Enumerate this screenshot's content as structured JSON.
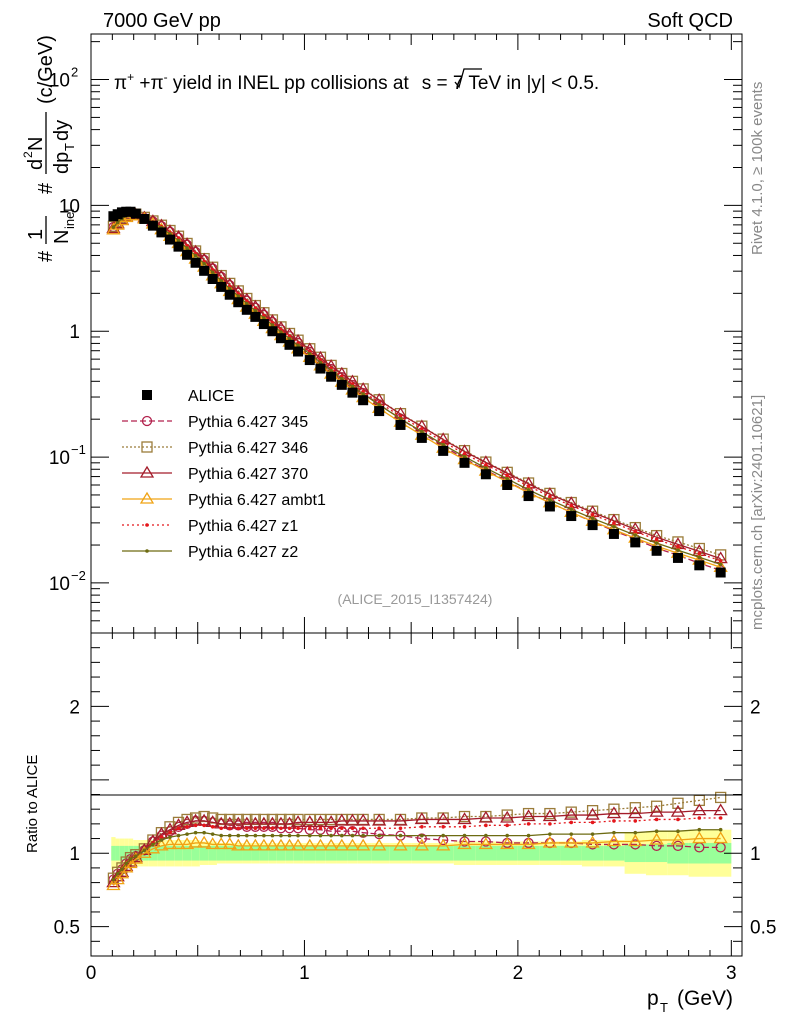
{
  "header": {
    "energy_label": "7000 GeV pp",
    "category_label": "Soft QCD"
  },
  "side": {
    "rivet_label": "Rivet 4.1.0, ≥ 100k events",
    "site_label": "mcplots.cern.ch [arXiv:2401.10621]"
  },
  "chart_data": {
    "type": "line",
    "title_parts": {
      "pi_plus": "π",
      "sup_plus": "+",
      "plus": " +",
      "pi_minus": "π",
      "sup_minus": "-",
      "middle": " yield in INEL pp collisions at",
      "sqrt_s": "s",
      "tail": " =  7 TeV in |y| < 0.5."
    },
    "analysis_id": "(ALICE_2015_I1357424)",
    "ylabel_main": "1/N_inel d²N/dp_T dy (c/GeV)",
    "ylabel_parts": {
      "hash1": "#",
      "one": "1",
      "n": "N",
      "inel": "inel",
      "hash2": "#",
      "d2n": "d",
      "two": "2",
      "n2": "N",
      "dp": "dp",
      "t": "T",
      "dy": "dy",
      "unit": "(c/GeV)"
    },
    "ylabel_ratio": "Ratio to ALICE",
    "xlabel_parts": {
      "p": "p",
      "t": "T",
      "unit": "(GeV)"
    },
    "xlim": [
      0,
      3.05
    ],
    "ylim_main": [
      0.004,
      230
    ],
    "ylim_ratio": [
      0.3,
      2.5
    ],
    "xticks": [
      {
        "value": 0,
        "label": "0"
      },
      {
        "value": 1,
        "label": "1"
      },
      {
        "value": 2,
        "label": "2"
      },
      {
        "value": 3,
        "label": "3"
      }
    ],
    "yticks_main": [
      {
        "value": 0.01,
        "base": "10",
        "exp": "−2"
      },
      {
        "value": 0.1,
        "base": "10",
        "exp": "−1"
      },
      {
        "value": 1,
        "base": "1",
        "exp": ""
      },
      {
        "value": 10,
        "base": "10",
        "exp": ""
      },
      {
        "value": 100,
        "base": "10",
        "exp": "2"
      }
    ],
    "yticks_ratio": [
      {
        "value": 0.5,
        "label": "0.5"
      },
      {
        "value": 1,
        "label": "1"
      },
      {
        "value": 2,
        "label": "2"
      }
    ],
    "x": [
      0.105,
      0.125,
      0.145,
      0.165,
      0.185,
      0.21,
      0.25,
      0.29,
      0.33,
      0.37,
      0.41,
      0.45,
      0.49,
      0.53,
      0.57,
      0.61,
      0.65,
      0.69,
      0.73,
      0.77,
      0.81,
      0.85,
      0.89,
      0.93,
      0.97,
      1.025,
      1.075,
      1.125,
      1.175,
      1.225,
      1.275,
      1.35,
      1.45,
      1.55,
      1.65,
      1.75,
      1.85,
      1.95,
      2.05,
      2.15,
      2.25,
      2.35,
      2.45,
      2.55,
      2.65,
      2.75,
      2.85,
      2.95
    ],
    "alice": [
      8.2,
      8.5,
      8.8,
      8.9,
      8.9,
      8.6,
      7.8,
      6.9,
      6.1,
      5.35,
      4.7,
      4.05,
      3.5,
      3.02,
      2.6,
      2.25,
      1.95,
      1.7,
      1.48,
      1.3,
      1.14,
      1.0,
      0.88,
      0.78,
      0.69,
      0.59,
      0.505,
      0.435,
      0.375,
      0.325,
      0.283,
      0.232,
      0.18,
      0.142,
      0.112,
      0.09,
      0.073,
      0.06,
      0.049,
      0.0405,
      0.034,
      0.0288,
      0.0245,
      0.021,
      0.018,
      0.0158,
      0.0138,
      0.0121
    ],
    "band_inner": [
      0.05,
      0.05,
      0.05,
      0.05,
      0.05,
      0.05,
      0.05,
      0.05,
      0.05,
      0.05,
      0.05,
      0.05,
      0.05,
      0.05,
      0.05,
      0.05,
      0.05,
      0.05,
      0.05,
      0.05,
      0.05,
      0.05,
      0.05,
      0.05,
      0.05,
      0.05,
      0.05,
      0.05,
      0.05,
      0.05,
      0.05,
      0.05,
      0.05,
      0.05,
      0.05,
      0.05,
      0.05,
      0.05,
      0.05,
      0.05,
      0.05,
      0.05,
      0.05,
      0.06,
      0.06,
      0.07,
      0.07,
      0.07
    ],
    "band_outer": [
      0.11,
      0.1,
      0.1,
      0.1,
      0.1,
      0.09,
      0.09,
      0.09,
      0.09,
      0.09,
      0.09,
      0.09,
      0.09,
      0.08,
      0.08,
      0.07,
      0.07,
      0.07,
      0.07,
      0.07,
      0.07,
      0.07,
      0.07,
      0.07,
      0.07,
      0.07,
      0.07,
      0.07,
      0.07,
      0.07,
      0.07,
      0.07,
      0.07,
      0.07,
      0.07,
      0.08,
      0.08,
      0.08,
      0.08,
      0.08,
      0.08,
      0.09,
      0.09,
      0.14,
      0.15,
      0.15,
      0.16,
      0.16
    ],
    "series": [
      {
        "name": "Pythia 6.427 345",
        "color": "#b2224d",
        "dash": "6,3",
        "marker": "circle",
        "ratio": [
          0.82,
          0.86,
          0.89,
          0.93,
          0.96,
          0.98,
          1.02,
          1.08,
          1.12,
          1.15,
          1.18,
          1.2,
          1.22,
          1.22,
          1.21,
          1.2,
          1.19,
          1.19,
          1.18,
          1.18,
          1.18,
          1.18,
          1.17,
          1.17,
          1.17,
          1.16,
          1.16,
          1.15,
          1.15,
          1.15,
          1.14,
          1.13,
          1.12,
          1.1,
          1.09,
          1.08,
          1.08,
          1.07,
          1.07,
          1.07,
          1.07,
          1.06,
          1.06,
          1.06,
          1.05,
          1.05,
          1.04,
          1.04
        ]
      },
      {
        "name": "Pythia 6.427 346",
        "color": "#9b7c3a",
        "dash": "2,2",
        "marker": "square",
        "ratio": [
          0.83,
          0.87,
          0.9,
          0.94,
          0.97,
          0.99,
          1.03,
          1.09,
          1.14,
          1.18,
          1.21,
          1.23,
          1.24,
          1.25,
          1.24,
          1.23,
          1.23,
          1.23,
          1.23,
          1.23,
          1.23,
          1.23,
          1.23,
          1.23,
          1.23,
          1.23,
          1.23,
          1.23,
          1.23,
          1.23,
          1.23,
          1.23,
          1.23,
          1.24,
          1.24,
          1.25,
          1.25,
          1.26,
          1.27,
          1.27,
          1.28,
          1.29,
          1.3,
          1.31,
          1.32,
          1.34,
          1.36,
          1.38
        ]
      },
      {
        "name": "Pythia 6.427 370",
        "color": "#a31c2a",
        "dash": "",
        "marker": "triangle",
        "ratio": [
          0.8,
          0.84,
          0.87,
          0.91,
          0.94,
          0.97,
          1.02,
          1.08,
          1.13,
          1.16,
          1.19,
          1.21,
          1.22,
          1.22,
          1.21,
          1.2,
          1.2,
          1.2,
          1.2,
          1.2,
          1.2,
          1.2,
          1.2,
          1.2,
          1.21,
          1.21,
          1.21,
          1.21,
          1.22,
          1.22,
          1.22,
          1.22,
          1.22,
          1.23,
          1.23,
          1.23,
          1.24,
          1.24,
          1.25,
          1.25,
          1.26,
          1.26,
          1.27,
          1.27,
          1.28,
          1.28,
          1.29,
          1.29
        ]
      },
      {
        "name": "Pythia 6.427 ambt1",
        "color": "#f0a314",
        "dash": "",
        "marker": "triangle",
        "ratio": [
          0.78,
          0.82,
          0.86,
          0.9,
          0.93,
          0.96,
          1.0,
          1.03,
          1.05,
          1.06,
          1.06,
          1.06,
          1.07,
          1.07,
          1.06,
          1.06,
          1.06,
          1.05,
          1.05,
          1.05,
          1.05,
          1.05,
          1.05,
          1.05,
          1.05,
          1.05,
          1.05,
          1.05,
          1.05,
          1.05,
          1.05,
          1.05,
          1.05,
          1.05,
          1.05,
          1.06,
          1.06,
          1.06,
          1.06,
          1.07,
          1.07,
          1.07,
          1.08,
          1.08,
          1.09,
          1.09,
          1.1,
          1.1
        ]
      },
      {
        "name": "Pythia 6.427 z1",
        "color": "#e4161b",
        "dash": "2,3",
        "marker": "dot",
        "ratio": [
          0.82,
          0.86,
          0.89,
          0.93,
          0.96,
          0.98,
          1.02,
          1.07,
          1.11,
          1.14,
          1.17,
          1.18,
          1.19,
          1.19,
          1.18,
          1.17,
          1.17,
          1.17,
          1.17,
          1.17,
          1.17,
          1.17,
          1.17,
          1.17,
          1.17,
          1.17,
          1.17,
          1.17,
          1.17,
          1.17,
          1.17,
          1.17,
          1.17,
          1.18,
          1.18,
          1.18,
          1.19,
          1.19,
          1.2,
          1.2,
          1.21,
          1.21,
          1.22,
          1.22,
          1.23,
          1.23,
          1.24,
          1.24
        ]
      },
      {
        "name": "Pythia 6.427 z2",
        "color": "#6d6b12",
        "dash": "",
        "marker": "dot",
        "ratio": [
          0.82,
          0.86,
          0.89,
          0.93,
          0.96,
          0.98,
          1.02,
          1.06,
          1.09,
          1.11,
          1.12,
          1.13,
          1.14,
          1.14,
          1.13,
          1.12,
          1.12,
          1.12,
          1.12,
          1.12,
          1.12,
          1.12,
          1.12,
          1.12,
          1.12,
          1.12,
          1.12,
          1.12,
          1.12,
          1.12,
          1.12,
          1.12,
          1.12,
          1.12,
          1.12,
          1.12,
          1.12,
          1.12,
          1.12,
          1.13,
          1.13,
          1.13,
          1.14,
          1.14,
          1.15,
          1.15,
          1.16,
          1.16
        ]
      }
    ],
    "legend": {
      "data_label": "ALICE",
      "position": "middle-left"
    }
  }
}
